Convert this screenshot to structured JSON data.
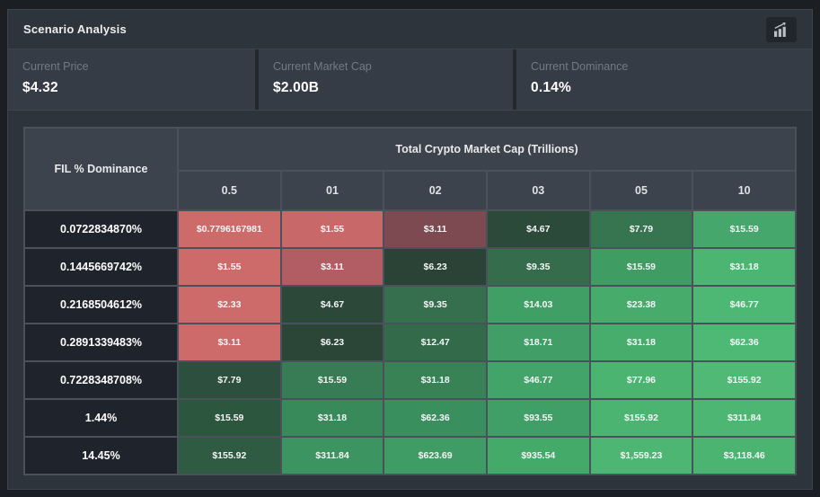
{
  "panel": {
    "title": "Scenario Analysis",
    "icon": "bar-chart-trending-up-icon"
  },
  "stats": [
    {
      "label": "Current Price",
      "value": "$4.32"
    },
    {
      "label": "Current Market Cap",
      "value": "$2.00B"
    },
    {
      "label": "Current Dominance",
      "value": "0.14%"
    }
  ],
  "table": {
    "corner_header": "FIL % Dominance",
    "group_header": "Total Crypto Market Cap (Trillions)",
    "columns": [
      "0.5",
      "01",
      "02",
      "03",
      "05",
      "10"
    ],
    "rows": [
      {
        "label": "0.0722834870%",
        "cells": [
          {
            "value": "$0.7796167981",
            "color": "#cd6b6b"
          },
          {
            "value": "$1.55",
            "color": "#c96868"
          },
          {
            "value": "$3.11",
            "color": "#7d4a52"
          },
          {
            "value": "$4.67",
            "color": "#2b4a39"
          },
          {
            "value": "$7.79",
            "color": "#36754f"
          },
          {
            "value": "$15.59",
            "color": "#45a76b"
          }
        ]
      },
      {
        "label": "0.1445669742%",
        "cells": [
          {
            "value": "$1.55",
            "color": "#cd6b6b"
          },
          {
            "value": "$3.11",
            "color": "#b25d63"
          },
          {
            "value": "$6.23",
            "color": "#2a4336"
          },
          {
            "value": "$9.35",
            "color": "#356d4c"
          },
          {
            "value": "$15.59",
            "color": "#3f9c63"
          },
          {
            "value": "$31.18",
            "color": "#4bb571"
          }
        ]
      },
      {
        "label": "0.2168504612%",
        "cells": [
          {
            "value": "$2.33",
            "color": "#cd6b6b"
          },
          {
            "value": "$4.67",
            "color": "#2b4839"
          },
          {
            "value": "$9.35",
            "color": "#356f4d"
          },
          {
            "value": "$14.03",
            "color": "#3f9f64"
          },
          {
            "value": "$23.38",
            "color": "#47ab6c"
          },
          {
            "value": "$46.77",
            "color": "#4db873"
          }
        ]
      },
      {
        "label": "0.2891339483%",
        "cells": [
          {
            "value": "$3.11",
            "color": "#cd6b6b"
          },
          {
            "value": "$6.23",
            "color": "#2b4537"
          },
          {
            "value": "$12.47",
            "color": "#336a4a"
          },
          {
            "value": "$18.71",
            "color": "#419e66"
          },
          {
            "value": "$31.18",
            "color": "#47ad6d"
          },
          {
            "value": "$62.36",
            "color": "#4eb974"
          }
        ]
      },
      {
        "label": "0.7228348708%",
        "cells": [
          {
            "value": "$7.79",
            "color": "#2d4f3d"
          },
          {
            "value": "$15.59",
            "color": "#377c54"
          },
          {
            "value": "$31.18",
            "color": "#388256"
          },
          {
            "value": "$46.77",
            "color": "#42a468"
          },
          {
            "value": "$77.96",
            "color": "#4bb471"
          },
          {
            "value": "$155.92",
            "color": "#4fb975"
          }
        ]
      },
      {
        "label": "1.44%",
        "cells": [
          {
            "value": "$15.59",
            "color": "#2d563f"
          },
          {
            "value": "$31.18",
            "color": "#398a5b"
          },
          {
            "value": "$62.36",
            "color": "#3a8f5e"
          },
          {
            "value": "$93.55",
            "color": "#3f9f66"
          },
          {
            "value": "$155.92",
            "color": "#4bb471"
          },
          {
            "value": "$311.84",
            "color": "#4db673"
          }
        ]
      },
      {
        "label": "14.45%",
        "cells": [
          {
            "value": "$155.92",
            "color": "#2e5b42"
          },
          {
            "value": "$311.84",
            "color": "#3c9560"
          },
          {
            "value": "$623.69",
            "color": "#3e9c64"
          },
          {
            "value": "$935.54",
            "color": "#43aa6a"
          },
          {
            "value": "$1,559.23",
            "color": "#4cb672"
          },
          {
            "value": "$3,118.46",
            "color": "#4bb471"
          }
        ]
      }
    ]
  },
  "colors": {
    "page_bg": "#1b1f24",
    "panel_bg": "#2e343c",
    "panel_border": "#3d444c",
    "table_border": "#4a515a",
    "header_cell_bg": "#3d434c",
    "row_label_bg": "#1f242c",
    "stat_box_bg": "#363c45",
    "red_bright": "#cd6b6b",
    "green_bright": "#4bb471"
  }
}
